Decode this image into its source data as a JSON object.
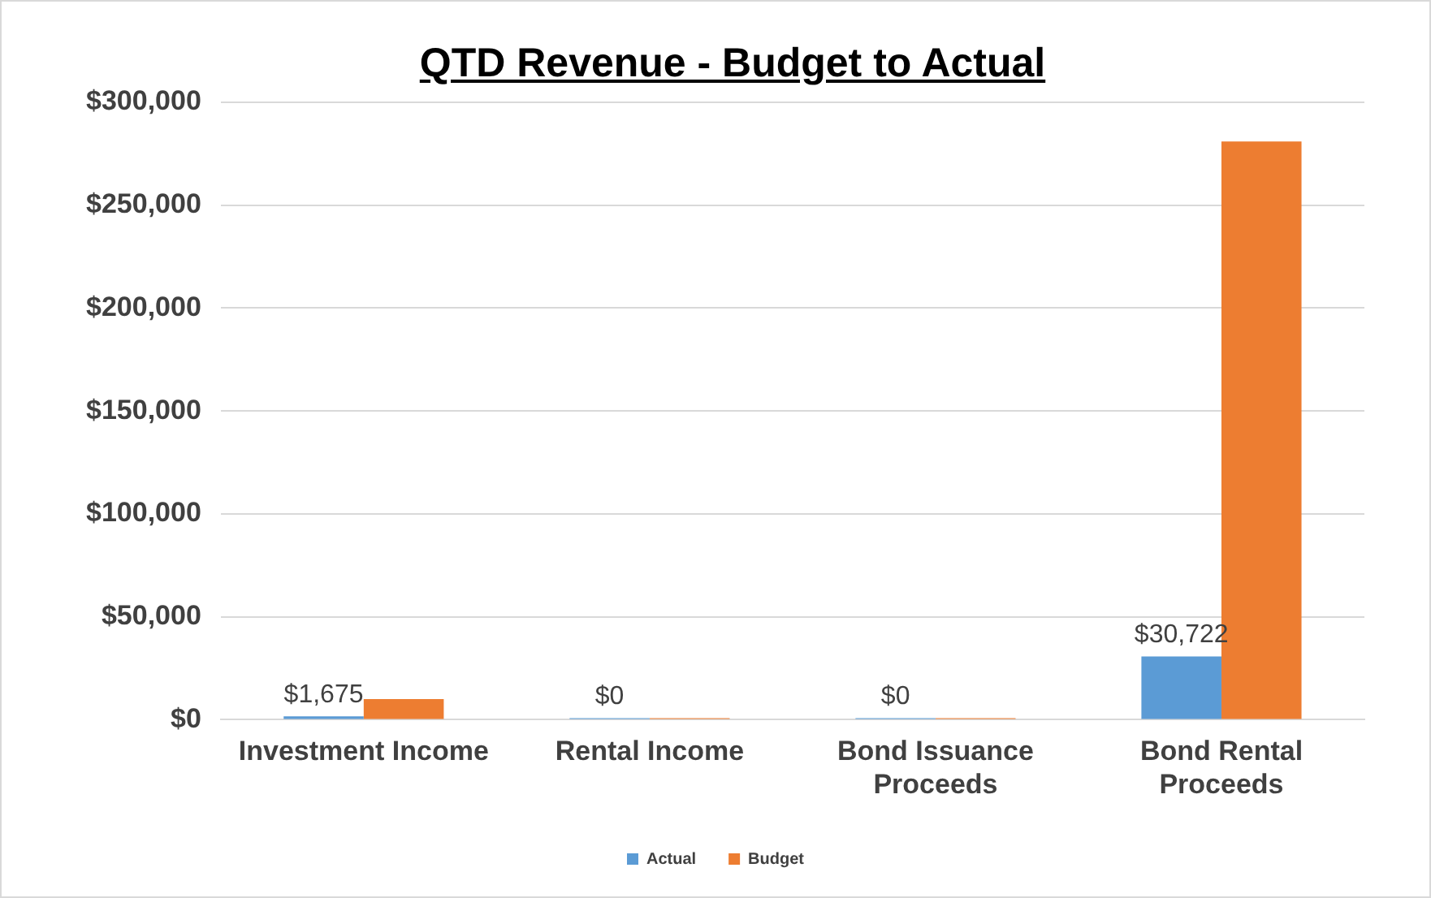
{
  "chart_data": {
    "type": "bar",
    "title": "QTD Revenue - Budget to Actual",
    "categories": [
      "Investment Income",
      "Rental Income",
      "Bond Issuance Proceeds",
      "Bond Rental Proceeds"
    ],
    "series": [
      {
        "name": "Actual",
        "color": "#5b9bd5",
        "values": [
          1675,
          0,
          0,
          30722
        ],
        "value_labels": [
          "$1,675",
          "$0",
          "$0",
          "$30,722"
        ]
      },
      {
        "name": "Budget",
        "color": "#ed7d31",
        "values": [
          10000,
          0,
          0,
          281000
        ]
      }
    ],
    "ylim": [
      0,
      300000
    ],
    "yticks": [
      {
        "value": 0,
        "label": "$0"
      },
      {
        "value": 50000,
        "label": "$50,000"
      },
      {
        "value": 100000,
        "label": "$100,000"
      },
      {
        "value": 150000,
        "label": "$150,000"
      },
      {
        "value": 200000,
        "label": "$200,000"
      },
      {
        "value": 250000,
        "label": "$250,000"
      },
      {
        "value": 300000,
        "label": "$300,000"
      }
    ],
    "grid": "y",
    "legend": "bottom"
  }
}
